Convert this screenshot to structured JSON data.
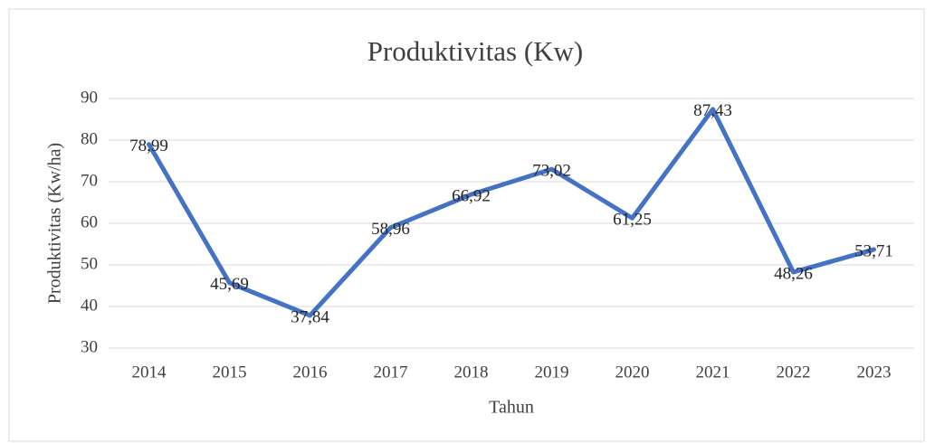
{
  "chart_data": {
    "type": "line",
    "title": "Produktivitas (Kw)",
    "x_label": "Tahun",
    "y_label": "Produktivitas  (Kw/ha)",
    "categories": [
      "2014",
      "2015",
      "2016",
      "2017",
      "2018",
      "2019",
      "2020",
      "2021",
      "2022",
      "2023"
    ],
    "series": [
      {
        "name": "Produktivitas",
        "color": "#4472c4",
        "values": [
          78.99,
          45.69,
          37.84,
          58.96,
          66.92,
          73.02,
          61.25,
          87.43,
          48.26,
          53.71
        ],
        "value_labels": [
          "78,99",
          "45,69",
          "37,84",
          "58,96",
          "66,92",
          "73,02",
          "61,25",
          "87,43",
          "48,26",
          "53,71"
        ]
      }
    ],
    "ylim": [
      30,
      90
    ],
    "yticks": [
      30,
      40,
      50,
      60,
      70,
      80,
      90
    ],
    "grid": true
  }
}
